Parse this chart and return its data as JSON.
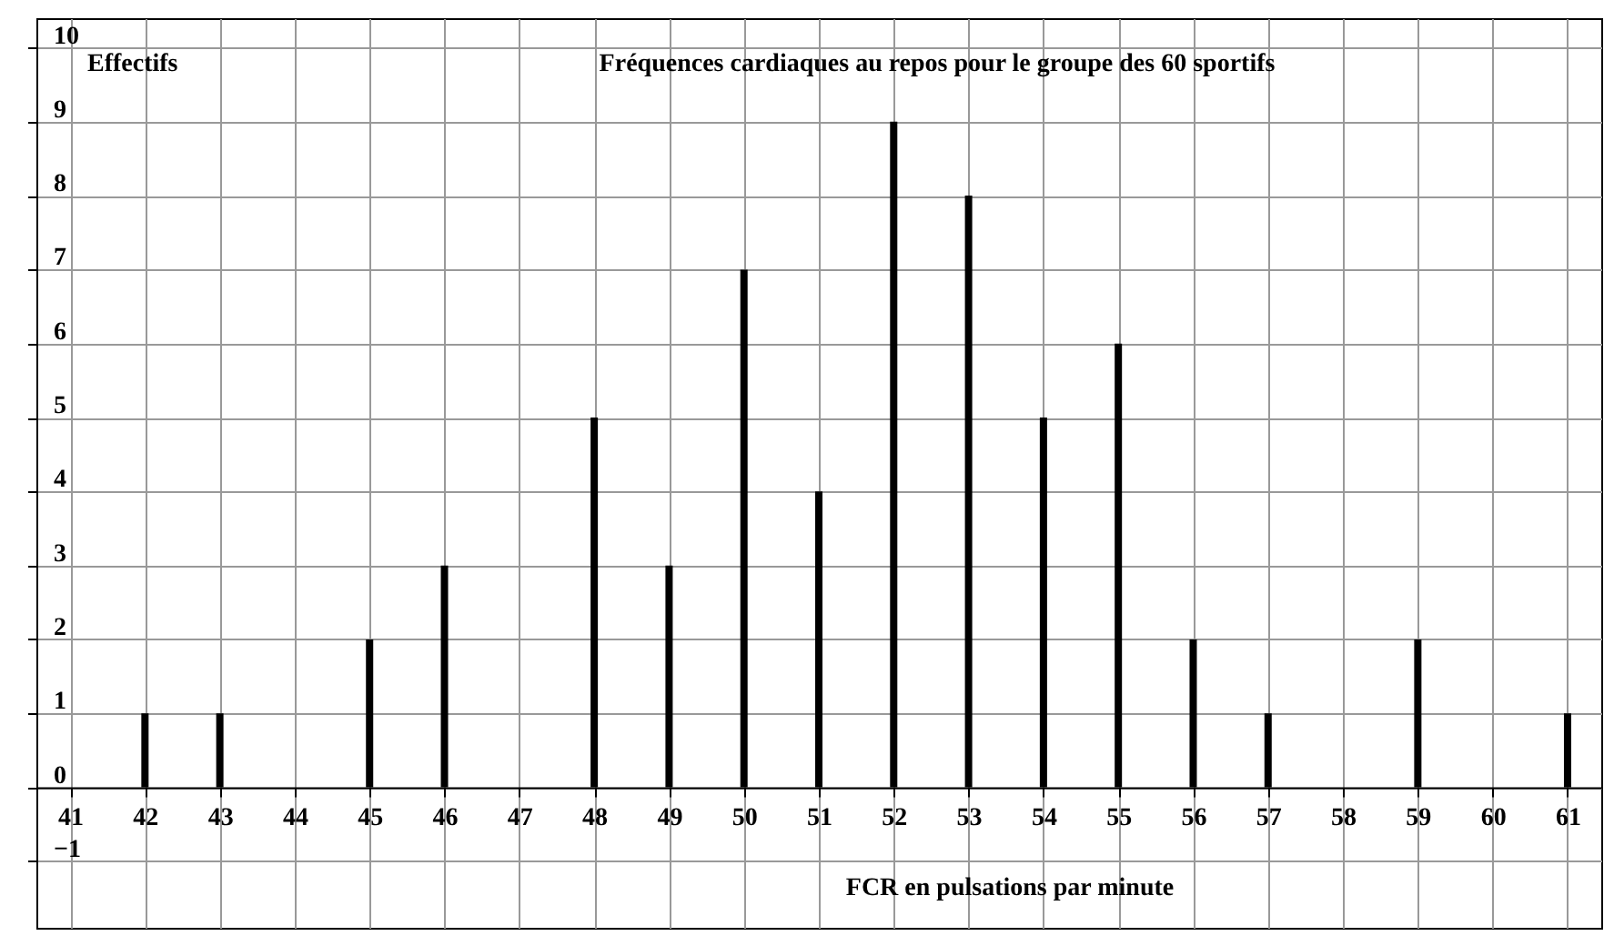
{
  "chart_data": {
    "type": "bar",
    "title": "Fréquences cardiaques au repos pour le groupe des 60 sportifs",
    "xlabel": "FCR en pulsations par minute",
    "ylabel": "Effectifs",
    "x": [
      42,
      43,
      45,
      46,
      48,
      49,
      50,
      51,
      52,
      53,
      54,
      55,
      56,
      57,
      59,
      61
    ],
    "values": [
      1,
      1,
      2,
      3,
      5,
      3,
      7,
      4,
      9,
      8,
      5,
      6,
      2,
      1,
      2,
      1
    ],
    "color": "#000000",
    "xlim": [
      40.55,
      61.45
    ],
    "xticks": [
      41,
      42,
      43,
      44,
      45,
      46,
      47,
      48,
      49,
      50,
      51,
      52,
      53,
      54,
      55,
      56,
      57,
      58,
      59,
      60,
      61
    ],
    "ylim": [
      -1.9,
      10.4
    ],
    "yticks": [
      -1,
      0,
      1,
      2,
      3,
      4,
      5,
      6,
      7,
      8,
      9,
      10
    ],
    "grid": true
  }
}
